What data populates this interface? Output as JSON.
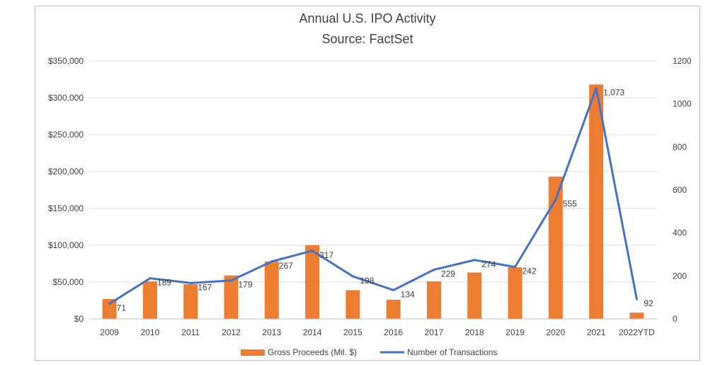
{
  "chart_data": {
    "type": "bar",
    "title": "Annual U.S. IPO Activity",
    "subtitle": "Source: FactSet",
    "xlabel": "",
    "ylabel": "",
    "categories": [
      "2009",
      "2010",
      "2011",
      "2012",
      "2013",
      "2014",
      "2015",
      "2016",
      "2017",
      "2018",
      "2019",
      "2020",
      "2021",
      "2022YTD"
    ],
    "series": [
      {
        "name": "Gross Proceeds (Mil. $)",
        "type": "bar",
        "axis": "left",
        "color": "#ED7D31",
        "values": [
          27000,
          51000,
          47000,
          59000,
          78000,
          100000,
          39000,
          26000,
          51000,
          63000,
          70000,
          193000,
          318000,
          8500
        ]
      },
      {
        "name": "Number of Transactions",
        "type": "line",
        "axis": "right",
        "color": "#4472C4",
        "values": [
          71,
          189,
          167,
          179,
          267,
          317,
          198,
          134,
          229,
          274,
          242,
          555,
          1073,
          92
        ],
        "labels": [
          "71",
          "189",
          "167",
          "179",
          "267",
          "317",
          "198",
          "134",
          "229",
          "274",
          "242",
          "555",
          "1,073",
          "92"
        ]
      }
    ],
    "y_left": {
      "range": [
        0,
        350000
      ],
      "ticks": [
        0,
        50000,
        100000,
        150000,
        200000,
        250000,
        300000,
        350000
      ],
      "tick_labels": [
        "$0",
        "$50,000",
        "$100,000",
        "$150,000",
        "$200,000",
        "$250,000",
        "$300,000",
        "$350,000"
      ]
    },
    "y_right": {
      "range": [
        0,
        1200
      ],
      "ticks": [
        0,
        200,
        400,
        600,
        800,
        1000,
        1200
      ],
      "tick_labels": [
        "0",
        "200",
        "400",
        "600",
        "800",
        "1000",
        "1200"
      ]
    },
    "grid": true,
    "legend_position": "bottom"
  }
}
